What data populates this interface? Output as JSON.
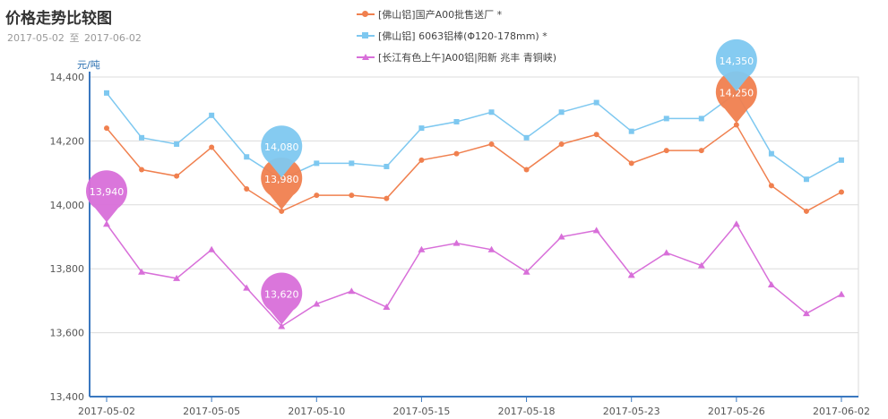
{
  "header": {
    "title": "价格走势比较图",
    "date_from": "2017-05-02",
    "date_sep": "至",
    "date_to": "2017-06-02"
  },
  "chart_data": {
    "type": "line",
    "unit": "元/吨",
    "ylim": [
      13400,
      14400
    ],
    "yticks": [
      "14,400",
      "14,200",
      "14,000",
      "13,800",
      "13,600",
      "13,400"
    ],
    "x": [
      "2017-05-02",
      "2017-05-03",
      "2017-05-04",
      "2017-05-05",
      "2017-05-08",
      "2017-05-09",
      "2017-05-10",
      "2017-05-11",
      "2017-05-12",
      "2017-05-15",
      "2017-05-16",
      "2017-05-17",
      "2017-05-18",
      "2017-05-19",
      "2017-05-22",
      "2017-05-23",
      "2017-05-24",
      "2017-05-25",
      "2017-05-26",
      "2017-05-31",
      "2017-06-01",
      "2017-06-02"
    ],
    "xtick_labels": [
      "2017-05-02",
      "2017-05-05",
      "2017-05-10",
      "2017-05-15",
      "2017-05-18",
      "2017-05-23",
      "2017-05-26",
      "2017-06-02"
    ],
    "grid": true,
    "legend_position": "top",
    "series": [
      {
        "name": "[佛山铝]国产A00批售送厂 *",
        "color": "#f0804f",
        "marker": "circle",
        "values": [
          14240,
          14110,
          14090,
          14180,
          14050,
          13980,
          14030,
          14030,
          14020,
          14140,
          14160,
          14190,
          14110,
          14190,
          14220,
          14130,
          14170,
          14170,
          14250,
          14060,
          13980,
          14040
        ],
        "callouts": [
          {
            "index": 5,
            "label": "13,980"
          },
          {
            "index": 18,
            "label": "14,250"
          }
        ]
      },
      {
        "name": "[佛山铝] 6063铝棒(Φ120-178mm) *",
        "color": "#7ec8f0",
        "marker": "square",
        "values": [
          14350,
          14210,
          14190,
          14280,
          14150,
          14080,
          14130,
          14130,
          14120,
          14240,
          14260,
          14290,
          14210,
          14290,
          14320,
          14230,
          14270,
          14270,
          14350,
          14160,
          14080,
          14140
        ],
        "callouts": [
          {
            "index": 5,
            "label": "14,080"
          },
          {
            "index": 18,
            "label": "14,350"
          }
        ]
      },
      {
        "name": "[长江有色上午]A00铝|阳新 兆丰 青铜峡)",
        "color": "#d86fd9",
        "marker": "triangle",
        "values": [
          13940,
          13790,
          13770,
          13860,
          13740,
          13620,
          13690,
          13730,
          13680,
          13860,
          13880,
          13860,
          13790,
          13900,
          13920,
          13780,
          13850,
          13810,
          13940,
          13750,
          13660,
          13720
        ],
        "callouts": [
          {
            "index": 0,
            "label": "13,940"
          },
          {
            "index": 5,
            "label": "13,620"
          }
        ]
      }
    ]
  }
}
